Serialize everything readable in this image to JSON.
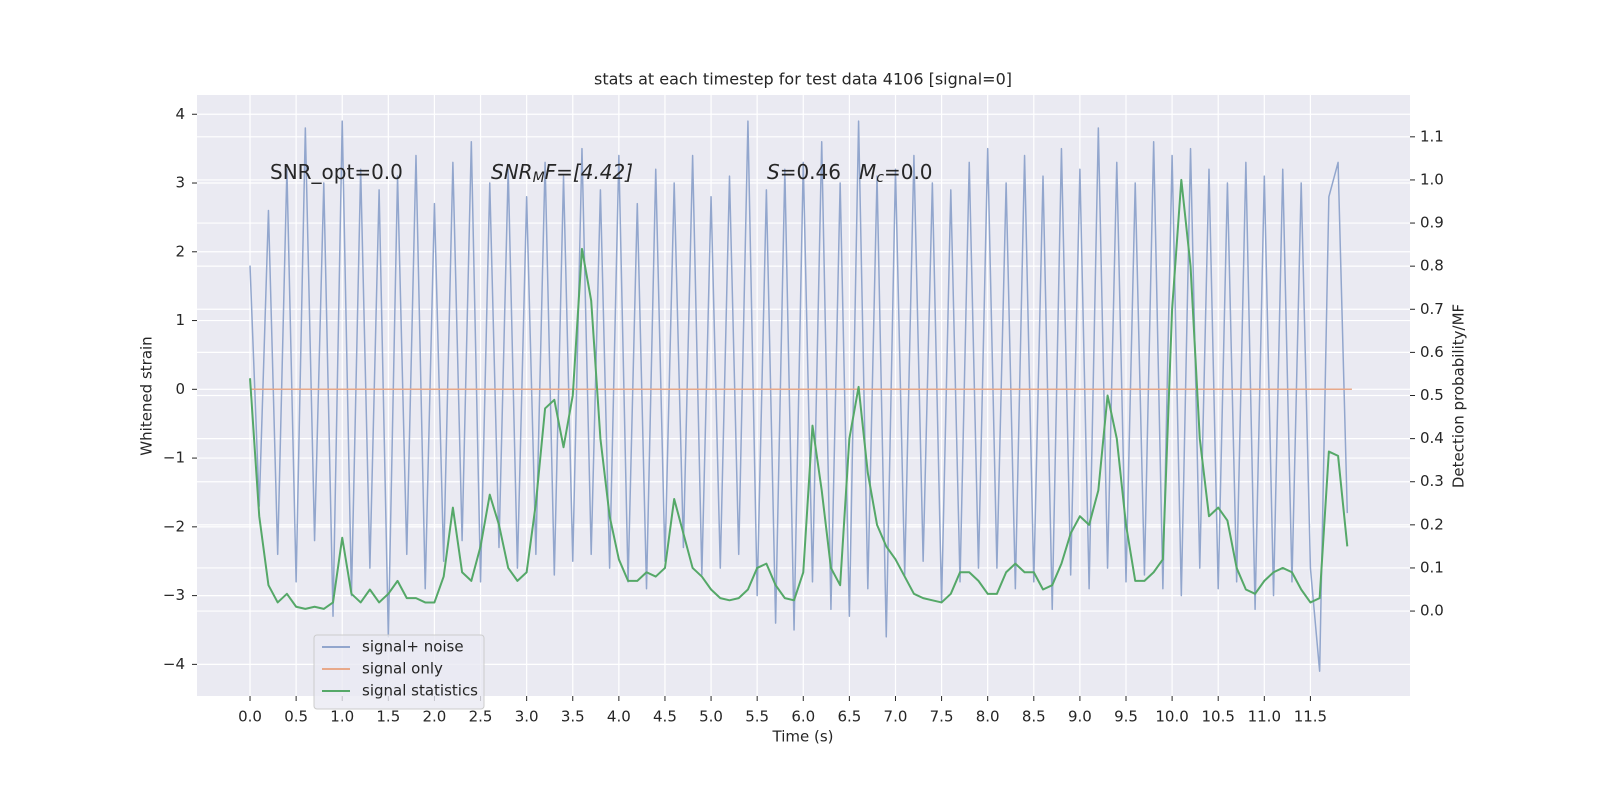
{
  "chart_data": {
    "type": "line",
    "title": "stats at each timestep for test data 4106 [signal=0]",
    "xlabel": "Time (s)",
    "ylabel": "Whitened strain",
    "y2label": "Detection probability/MF",
    "annotations": [
      [
        "SNR_opt=0.0"
      ],
      [
        "SNR",
        "M",
        "F=[4.42]"
      ],
      [
        "S",
        "=0.46"
      ],
      [
        "M",
        "c",
        "=0.0"
      ]
    ],
    "xlim": [
      -0.575,
      12.58
    ],
    "ylim": [
      -4.46,
      4.28
    ],
    "y2lim": [
      -0.197,
      1.197
    ],
    "xticks": [
      {
        "value": 0,
        "label": "0.0"
      },
      0.5,
      {
        "value": 1,
        "label": "1.0"
      },
      1.5,
      {
        "value": 2,
        "label": "2.0"
      },
      2.5,
      {
        "value": 3,
        "label": "3.0"
      },
      3.5,
      {
        "value": 4,
        "label": "4.0"
      },
      4.5,
      {
        "value": 5,
        "label": "5.0"
      },
      5.5,
      {
        "value": 6,
        "label": "6.0"
      },
      6.5,
      {
        "value": 7,
        "label": "7.0"
      },
      7.5,
      {
        "value": 8,
        "label": "8.0"
      },
      8.5,
      {
        "value": 9,
        "label": "9.0"
      },
      9.5,
      {
        "value": 10,
        "label": "10.0"
      },
      10.5,
      {
        "value": 11,
        "label": "11.0"
      },
      11.5
    ],
    "yticks": [
      {
        "value": -4,
        "label": "−4"
      },
      {
        "value": -3,
        "label": "−3"
      },
      {
        "value": -2,
        "label": "−2"
      },
      {
        "value": -1,
        "label": "−1"
      },
      0,
      1,
      2,
      3,
      4
    ],
    "y2ticks": [
      {
        "value": 0,
        "label": "0.0"
      },
      0.1,
      0.2,
      0.3,
      0.4,
      0.5,
      0.6,
      0.7,
      0.8,
      0.9,
      {
        "value": 1,
        "label": "1.0"
      },
      1.1
    ],
    "grid": true,
    "legend": "lower left",
    "series": [
      {
        "name": "signal+ noise",
        "color": "#92a6cd",
        "x": [
          0.0,
          0.1,
          0.2,
          0.3,
          0.4,
          0.5,
          0.6,
          0.7,
          0.8,
          0.9,
          1.0,
          1.1,
          1.2,
          1.3,
          1.4,
          1.5,
          1.6,
          1.7,
          1.8,
          1.9,
          2.0,
          2.1,
          2.2,
          2.3,
          2.4,
          2.5,
          2.6,
          2.7,
          2.8,
          2.9,
          3.0,
          3.1,
          3.2,
          3.3,
          3.4,
          3.5,
          3.6,
          3.7,
          3.8,
          3.9,
          4.0,
          4.1,
          4.2,
          4.3,
          4.4,
          4.5,
          4.6,
          4.7,
          4.8,
          4.9,
          5.0,
          5.1,
          5.2,
          5.3,
          5.4,
          5.5,
          5.6,
          5.7,
          5.8,
          5.9,
          6.0,
          6.1,
          6.2,
          6.3,
          6.4,
          6.5,
          6.6,
          6.7,
          6.8,
          6.9,
          7.0,
          7.1,
          7.2,
          7.3,
          7.4,
          7.5,
          7.6,
          7.7,
          7.8,
          7.9,
          8.0,
          8.1,
          8.2,
          8.3,
          8.4,
          8.5,
          8.6,
          8.7,
          8.8,
          8.9,
          9.0,
          9.1,
          9.2,
          9.3,
          9.4,
          9.5,
          9.6,
          9.7,
          9.8,
          9.9,
          10.0,
          10.1,
          10.2,
          10.3,
          10.4,
          10.5,
          10.6,
          10.7,
          10.8,
          10.9,
          11.0,
          11.1,
          11.2,
          11.3,
          11.4,
          11.5,
          11.6,
          11.7,
          11.8,
          11.9
        ],
        "values": [
          1.8,
          -1.7,
          2.6,
          -2.4,
          3.2,
          -2.8,
          3.8,
          -2.2,
          3.0,
          -3.3,
          3.9,
          -3.0,
          3.2,
          -2.6,
          2.9,
          -3.6,
          3.1,
          -2.4,
          3.4,
          -2.9,
          2.7,
          -2.5,
          3.3,
          -2.2,
          3.6,
          -2.8,
          3.0,
          -2.3,
          3.2,
          -2.6,
          2.8,
          -2.4,
          3.3,
          -2.7,
          3.1,
          -2.5,
          3.5,
          -2.4,
          2.9,
          -2.6,
          3.4,
          -2.8,
          2.7,
          -2.9,
          3.2,
          -2.5,
          3.0,
          -2.3,
          3.4,
          -2.7,
          2.8,
          -2.6,
          3.1,
          -2.4,
          3.9,
          -3.0,
          2.9,
          -3.4,
          3.2,
          -3.5,
          3.3,
          -2.8,
          3.6,
          -3.2,
          3.0,
          -3.3,
          3.9,
          -2.9,
          3.1,
          -3.6,
          3.2,
          -2.7,
          3.4,
          -2.5,
          3.0,
          -3.1,
          2.9,
          -2.8,
          3.3,
          -2.6,
          3.5,
          -2.6,
          3.0,
          -2.9,
          3.4,
          -2.8,
          3.1,
          -3.2,
          3.5,
          -2.7,
          3.2,
          -2.9,
          3.8,
          -2.6,
          3.3,
          -2.8,
          3.0,
          -2.7,
          3.6,
          -2.9,
          3.4,
          -3.0,
          3.5,
          -2.6,
          3.2,
          -2.9,
          3.0,
          -2.8,
          3.3,
          -3.2,
          3.1,
          -3.0,
          3.2,
          -2.8,
          3.0,
          -2.6,
          -4.1,
          2.8,
          3.3,
          -1.8
        ]
      },
      {
        "name": "signal only",
        "color": "#e8a98a",
        "x": [
          0.0,
          11.95
        ],
        "values": [
          0,
          0
        ]
      },
      {
        "name": "signal statistics",
        "color": "#55a868",
        "axis": "y2",
        "x": [
          0.0,
          0.1,
          0.2,
          0.3,
          0.4,
          0.5,
          0.6,
          0.7,
          0.8,
          0.9,
          1.0,
          1.1,
          1.2,
          1.3,
          1.4,
          1.5,
          1.6,
          1.7,
          1.8,
          1.9,
          2.0,
          2.1,
          2.2,
          2.3,
          2.4,
          2.5,
          2.6,
          2.7,
          2.8,
          2.9,
          3.0,
          3.1,
          3.2,
          3.3,
          3.4,
          3.5,
          3.6,
          3.7,
          3.8,
          3.9,
          4.0,
          4.1,
          4.2,
          4.3,
          4.4,
          4.5,
          4.6,
          4.7,
          4.8,
          4.9,
          5.0,
          5.1,
          5.2,
          5.3,
          5.4,
          5.5,
          5.6,
          5.7,
          5.8,
          5.9,
          6.0,
          6.1,
          6.2,
          6.3,
          6.4,
          6.5,
          6.6,
          6.7,
          6.8,
          6.9,
          7.0,
          7.1,
          7.2,
          7.3,
          7.4,
          7.5,
          7.6,
          7.7,
          7.8,
          7.9,
          8.0,
          8.1,
          8.2,
          8.3,
          8.4,
          8.5,
          8.6,
          8.7,
          8.8,
          8.9,
          9.0,
          9.1,
          9.2,
          9.3,
          9.4,
          9.5,
          9.6,
          9.7,
          9.8,
          9.9,
          10.0,
          10.1,
          10.2,
          10.3,
          10.4,
          10.5,
          10.6,
          10.7,
          10.8,
          10.9,
          11.0,
          11.1,
          11.2,
          11.3,
          11.4,
          11.5,
          11.6,
          11.7,
          11.8,
          11.9
        ],
        "values": [
          0.54,
          0.22,
          0.06,
          0.02,
          0.04,
          0.01,
          0.005,
          0.01,
          0.005,
          0.02,
          0.17,
          0.04,
          0.02,
          0.05,
          0.02,
          0.04,
          0.07,
          0.03,
          0.03,
          0.02,
          0.02,
          0.08,
          0.24,
          0.09,
          0.07,
          0.15,
          0.27,
          0.2,
          0.1,
          0.07,
          0.09,
          0.25,
          0.47,
          0.49,
          0.38,
          0.5,
          0.84,
          0.72,
          0.4,
          0.22,
          0.12,
          0.07,
          0.07,
          0.09,
          0.08,
          0.1,
          0.26,
          0.18,
          0.1,
          0.08,
          0.05,
          0.03,
          0.025,
          0.03,
          0.05,
          0.1,
          0.11,
          0.06,
          0.03,
          0.025,
          0.09,
          0.43,
          0.28,
          0.1,
          0.06,
          0.4,
          0.52,
          0.32,
          0.2,
          0.15,
          0.12,
          0.08,
          0.04,
          0.03,
          0.025,
          0.02,
          0.04,
          0.09,
          0.09,
          0.07,
          0.04,
          0.04,
          0.09,
          0.11,
          0.09,
          0.09,
          0.05,
          0.06,
          0.11,
          0.18,
          0.22,
          0.2,
          0.28,
          0.5,
          0.4,
          0.2,
          0.07,
          0.07,
          0.09,
          0.12,
          0.7,
          1.0,
          0.8,
          0.4,
          0.22,
          0.24,
          0.21,
          0.1,
          0.05,
          0.04,
          0.07,
          0.09,
          0.1,
          0.09,
          0.05,
          0.02,
          0.03,
          0.37,
          0.36,
          0.15
        ]
      }
    ]
  }
}
